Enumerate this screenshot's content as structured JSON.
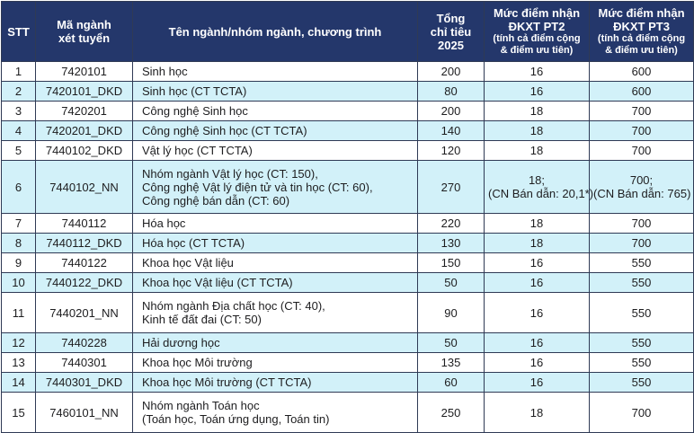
{
  "header": {
    "stt": "STT",
    "code_line1": "Mã ngành",
    "code_line2": "xét tuyển",
    "name": "Tên ngành/nhóm ngành, chương trình",
    "quota_line1": "Tổng",
    "quota_line2": "chỉ tiêu",
    "quota_line3": "2025",
    "pt2_line1": "Mức điểm nhận",
    "pt2_line2": "ĐKXT PT2",
    "pt2_line3": "(tính cả điểm cộng",
    "pt2_line4": "& điểm ưu tiên)",
    "pt3_line1": "Mức điểm nhận",
    "pt3_line2": "ĐKXT PT3",
    "pt3_line3": "(tính cả điểm cộng",
    "pt3_line4": "& điểm ưu tiên)"
  },
  "rows": [
    {
      "stt": "1",
      "code": "7420101",
      "name": [
        "Sinh học"
      ],
      "quota": "200",
      "pt2": [
        "16"
      ],
      "pt3": [
        "600"
      ]
    },
    {
      "stt": "2",
      "code": "7420101_DKD",
      "name": [
        "Sinh học (CT TCTA)"
      ],
      "quota": "80",
      "pt2": [
        "16"
      ],
      "pt3": [
        "600"
      ]
    },
    {
      "stt": "3",
      "code": "7420201",
      "name": [
        "Công nghệ Sinh học"
      ],
      "quota": "200",
      "pt2": [
        "18"
      ],
      "pt3": [
        "700"
      ]
    },
    {
      "stt": "4",
      "code": "7420201_DKD",
      "name": [
        "Công nghệ Sinh học (CT TCTA)"
      ],
      "quota": "140",
      "pt2": [
        "18"
      ],
      "pt3": [
        "700"
      ]
    },
    {
      "stt": "5",
      "code": "7440102_DKD",
      "name": [
        "Vật lý học (CT TCTA)"
      ],
      "quota": "120",
      "pt2": [
        "18"
      ],
      "pt3": [
        "700"
      ]
    },
    {
      "stt": "6",
      "code": "7440102_NN",
      "name": [
        "Nhóm ngành Vật lý học (CT: 150),",
        "Công nghệ Vật lý điện tử và tin học (CT: 60),",
        "Công nghệ bán dẫn (CT: 60)"
      ],
      "quota": "270",
      "pt2": [
        "18;",
        "(CN Bán dẫn: 20,1*)"
      ],
      "pt3": [
        "700;",
        "(CN Bán dẫn: 765)"
      ]
    },
    {
      "stt": "7",
      "code": "7440112",
      "name": [
        "Hóa học"
      ],
      "quota": "220",
      "pt2": [
        "18"
      ],
      "pt3": [
        "700"
      ]
    },
    {
      "stt": "8",
      "code": "7440112_DKD",
      "name": [
        "Hóa học (CT TCTA)"
      ],
      "quota": "130",
      "pt2": [
        "18"
      ],
      "pt3": [
        "700"
      ]
    },
    {
      "stt": "9",
      "code": "7440122",
      "name": [
        "Khoa học Vật liệu"
      ],
      "quota": "150",
      "pt2": [
        "16"
      ],
      "pt3": [
        "550"
      ]
    },
    {
      "stt": "10",
      "code": "7440122_DKD",
      "name": [
        "Khoa học Vật liệu (CT TCTA)"
      ],
      "quota": "50",
      "pt2": [
        "16"
      ],
      "pt3": [
        "550"
      ]
    },
    {
      "stt": "11",
      "code": "7440201_NN",
      "name": [
        "Nhóm ngành Địa chất học (CT: 40),",
        "Kinh tế đất đai (CT: 50)"
      ],
      "quota": "90",
      "pt2": [
        "16"
      ],
      "pt3": [
        "550"
      ]
    },
    {
      "stt": "12",
      "code": "7440228",
      "name": [
        "Hải dương học"
      ],
      "quota": "50",
      "pt2": [
        "16"
      ],
      "pt3": [
        "550"
      ]
    },
    {
      "stt": "13",
      "code": "7440301",
      "name": [
        "Khoa học Môi trường"
      ],
      "quota": "135",
      "pt2": [
        "16"
      ],
      "pt3": [
        "550"
      ]
    },
    {
      "stt": "14",
      "code": "7440301_DKD",
      "name": [
        "Khoa học Môi trường (CT TCTA)"
      ],
      "quota": "60",
      "pt2": [
        "16"
      ],
      "pt3": [
        "550"
      ]
    },
    {
      "stt": "15",
      "code": "7460101_NN",
      "name": [
        "Nhóm ngành Toán học",
        "(Toán học, Toán ứng dụng, Toán tin)"
      ],
      "quota": "250",
      "pt2": [
        "18"
      ],
      "pt3": [
        "700"
      ]
    }
  ],
  "colors": {
    "header_background": "#24376b",
    "header_text": "#ffffff",
    "row_alt_background": "#d2f1f9",
    "row_background": "#ffffff",
    "border": "#2f3a55"
  }
}
